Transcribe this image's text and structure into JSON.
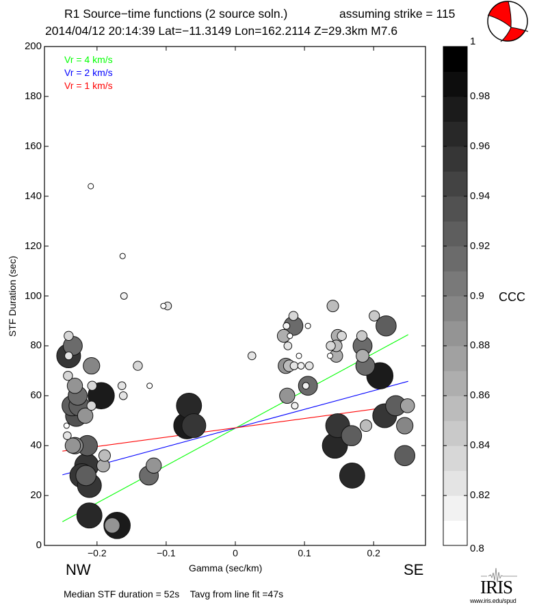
{
  "header": {
    "line1_left": "R1 Source−time functions (2 source soln.)",
    "line1_right": "assuming strike = 115",
    "line2": "2014/04/12 20:14:39  Lat=−11.3149 Lon=162.2114  Z=29.3km  M7.6"
  },
  "footer": {
    "nw": "NW",
    "se": "SE",
    "summary": "Median STF duration = 52s    Tavg from line fit =47s",
    "logo_text": "IRIS",
    "logo_url": "www.iris.edu/spud"
  },
  "colors": {
    "vr4": "#00ff00",
    "vr2": "#0000ff",
    "vr1": "#ff0000",
    "beachball": "#ff0000"
  },
  "chart_data": {
    "type": "scatter",
    "title": "R1 Source−time functions (2 source soln.)",
    "xlabel": "Gamma (sec/km)",
    "ylabel": "STF Duration (sec)",
    "xlim": [
      -0.276,
      0.275
    ],
    "ylim": [
      0,
      200
    ],
    "xticks": [
      -0.2,
      -0.1,
      0,
      0.1,
      0.2
    ],
    "xtick_labels": [
      "−0.2",
      "−0.1",
      "0",
      "0.1",
      "0.2"
    ],
    "yticks": [
      0,
      20,
      40,
      60,
      80,
      100,
      120,
      140,
      160,
      180,
      200
    ],
    "ytick_labels": [
      "0",
      "20",
      "40",
      "60",
      "80",
      "100",
      "120",
      "140",
      "160",
      "180",
      "200"
    ],
    "legend": [
      {
        "label": "Vr = 4 km/s",
        "color": "#00ff00"
      },
      {
        "label": "Vr = 2 km/s",
        "color": "#0000ff"
      },
      {
        "label": "Vr = 1 km/s",
        "color": "#ff0000"
      }
    ],
    "lines": [
      {
        "name": "Vr = 4 km/s",
        "color": "#00ff00",
        "x": [
          -0.25,
          0.25
        ],
        "y": [
          9.5,
          84.5
        ]
      },
      {
        "name": "Vr = 2 km/s",
        "color": "#0000ff",
        "x": [
          -0.25,
          0.25
        ],
        "y": [
          28.3,
          65.8
        ]
      },
      {
        "name": "Vr = 1 km/s",
        "color": "#ff0000",
        "x": [
          -0.25,
          0.25
        ],
        "y": [
          37.8,
          56.5
        ]
      }
    ],
    "colorbar": {
      "label": "CCC",
      "range": [
        0.8,
        1.0
      ],
      "step": 0.01,
      "tick_labels": [
        "1",
        "0.98",
        "0.96",
        "0.94",
        "0.92",
        "0.9",
        "0.88",
        "0.86",
        "0.84",
        "0.82",
        "0.8"
      ],
      "tick_values": [
        1.0,
        0.98,
        0.96,
        0.94,
        0.92,
        0.9,
        0.88,
        0.86,
        0.84,
        0.82,
        0.8
      ]
    },
    "points": [
      {
        "x": -0.209,
        "y": 144,
        "ccc": 0.8
      },
      {
        "x": -0.163,
        "y": 116,
        "ccc": 0.8
      },
      {
        "x": -0.161,
        "y": 100,
        "ccc": 0.81
      },
      {
        "x": -0.104,
        "y": 96,
        "ccc": 0.8
      },
      {
        "x": -0.098,
        "y": 96,
        "ccc": 0.82
      },
      {
        "x": -0.241,
        "y": 84,
        "ccc": 0.83
      },
      {
        "x": -0.241,
        "y": 76,
        "ccc": 0.95
      },
      {
        "x": -0.235,
        "y": 80,
        "ccc": 0.91
      },
      {
        "x": -0.241,
        "y": 76,
        "ccc": 0.82
      },
      {
        "x": -0.208,
        "y": 72,
        "ccc": 0.89
      },
      {
        "x": -0.141,
        "y": 72,
        "ccc": 0.83
      },
      {
        "x": -0.242,
        "y": 68,
        "ccc": 0.83
      },
      {
        "x": -0.232,
        "y": 64,
        "ccc": 0.88
      },
      {
        "x": -0.164,
        "y": 64,
        "ccc": 0.82
      },
      {
        "x": -0.124,
        "y": 64,
        "ccc": 0.8
      },
      {
        "x": -0.228,
        "y": 60,
        "ccc": 0.91
      },
      {
        "x": -0.194,
        "y": 60,
        "ccc": 0.97
      },
      {
        "x": -0.207,
        "y": 64,
        "ccc": 0.83
      },
      {
        "x": -0.162,
        "y": 60,
        "ccc": 0.82
      },
      {
        "x": -0.236,
        "y": 56,
        "ccc": 0.92
      },
      {
        "x": -0.226,
        "y": 56,
        "ccc": 0.92
      },
      {
        "x": -0.23,
        "y": 52,
        "ccc": 0.93
      },
      {
        "x": -0.217,
        "y": 52,
        "ccc": 0.88
      },
      {
        "x": -0.208,
        "y": 56,
        "ccc": 0.83
      },
      {
        "x": -0.244,
        "y": 48,
        "ccc": 0.8
      },
      {
        "x": -0.243,
        "y": 44,
        "ccc": 0.82
      },
      {
        "x": -0.235,
        "y": 40,
        "ccc": 0.88
      },
      {
        "x": -0.232,
        "y": 40,
        "ccc": 0.89
      },
      {
        "x": -0.214,
        "y": 40,
        "ccc": 0.92
      },
      {
        "x": -0.189,
        "y": 36,
        "ccc": 0.85
      },
      {
        "x": -0.191,
        "y": 32,
        "ccc": 0.86
      },
      {
        "x": -0.215,
        "y": 32,
        "ccc": 0.95
      },
      {
        "x": -0.222,
        "y": 28,
        "ccc": 0.95
      },
      {
        "x": -0.211,
        "y": 24,
        "ccc": 0.95
      },
      {
        "x": -0.216,
        "y": 28,
        "ccc": 0.92
      },
      {
        "x": -0.118,
        "y": 32,
        "ccc": 0.88
      },
      {
        "x": -0.125,
        "y": 28,
        "ccc": 0.91
      },
      {
        "x": -0.211,
        "y": 12,
        "ccc": 0.96
      },
      {
        "x": -0.171,
        "y": 8,
        "ccc": 0.97
      },
      {
        "x": -0.178,
        "y": 8,
        "ccc": 0.88
      },
      {
        "x": -0.067,
        "y": 56,
        "ccc": 0.96
      },
      {
        "x": -0.07,
        "y": 48,
        "ccc": 0.97
      },
      {
        "x": -0.06,
        "y": 48,
        "ccc": 0.95
      },
      {
        "x": 0.024,
        "y": 76,
        "ccc": 0.82
      },
      {
        "x": 0.074,
        "y": 88,
        "ccc": 0.81
      },
      {
        "x": 0.084,
        "y": 92,
        "ccc": 0.83
      },
      {
        "x": 0.084,
        "y": 88,
        "ccc": 0.91
      },
      {
        "x": 0.105,
        "y": 88,
        "ccc": 0.8
      },
      {
        "x": 0.07,
        "y": 84,
        "ccc": 0.86
      },
      {
        "x": 0.079,
        "y": 84,
        "ccc": 0.8
      },
      {
        "x": 0.076,
        "y": 80,
        "ccc": 0.82
      },
      {
        "x": 0.092,
        "y": 76,
        "ccc": 0.8
      },
      {
        "x": 0.073,
        "y": 72,
        "ccc": 0.88
      },
      {
        "x": 0.078,
        "y": 72,
        "ccc": 0.85
      },
      {
        "x": 0.085,
        "y": 72,
        "ccc": 0.82
      },
      {
        "x": 0.095,
        "y": 72,
        "ccc": 0.81
      },
      {
        "x": 0.107,
        "y": 72,
        "ccc": 0.82
      },
      {
        "x": 0.075,
        "y": 60,
        "ccc": 0.88
      },
      {
        "x": 0.105,
        "y": 64,
        "ccc": 0.91
      },
      {
        "x": 0.102,
        "y": 64,
        "ccc": 0.81
      },
      {
        "x": 0.086,
        "y": 56,
        "ccc": 0.81
      },
      {
        "x": 0.141,
        "y": 96,
        "ccc": 0.85
      },
      {
        "x": 0.138,
        "y": 80,
        "ccc": 0.83
      },
      {
        "x": 0.146,
        "y": 80,
        "ccc": 0.85
      },
      {
        "x": 0.148,
        "y": 84,
        "ccc": 0.86
      },
      {
        "x": 0.154,
        "y": 84,
        "ccc": 0.83
      },
      {
        "x": 0.137,
        "y": 76,
        "ccc": 0.8
      },
      {
        "x": 0.146,
        "y": 76,
        "ccc": 0.86
      },
      {
        "x": 0.201,
        "y": 92,
        "ccc": 0.84
      },
      {
        "x": 0.218,
        "y": 88,
        "ccc": 0.92
      },
      {
        "x": 0.183,
        "y": 84,
        "ccc": 0.84
      },
      {
        "x": 0.184,
        "y": 80,
        "ccc": 0.91
      },
      {
        "x": 0.184,
        "y": 76,
        "ccc": 0.86
      },
      {
        "x": 0.188,
        "y": 72,
        "ccc": 0.91
      },
      {
        "x": 0.209,
        "y": 68,
        "ccc": 0.97
      },
      {
        "x": 0.148,
        "y": 48,
        "ccc": 0.95
      },
      {
        "x": 0.168,
        "y": 44,
        "ccc": 0.92
      },
      {
        "x": 0.144,
        "y": 40,
        "ccc": 0.96
      },
      {
        "x": 0.169,
        "y": 28,
        "ccc": 0.96
      },
      {
        "x": 0.189,
        "y": 48,
        "ccc": 0.85
      },
      {
        "x": 0.216,
        "y": 52,
        "ccc": 0.95
      },
      {
        "x": 0.232,
        "y": 56,
        "ccc": 0.92
      },
      {
        "x": 0.249,
        "y": 56,
        "ccc": 0.87
      },
      {
        "x": 0.245,
        "y": 48,
        "ccc": 0.89
      },
      {
        "x": 0.245,
        "y": 36,
        "ccc": 0.92
      }
    ]
  }
}
